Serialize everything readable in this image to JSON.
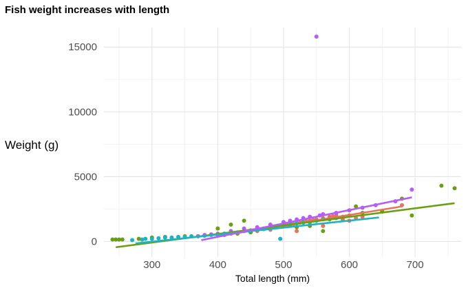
{
  "chart_data": {
    "type": "scatter",
    "title": "Fish weight increases with length",
    "xlabel": "Total length (mm)",
    "ylabel": "Weight (g)",
    "xlim": [
      227,
      770
    ],
    "ylim": [
      -1200,
      16500
    ],
    "x_ticks": [
      300,
      400,
      500,
      600,
      700
    ],
    "y_ticks": [
      0,
      5000,
      10000,
      15000
    ],
    "grid": true,
    "legend": "none",
    "series": [
      {
        "color": "#e8735f",
        "points": [
          [
            400,
            500
          ],
          [
            420,
            600
          ],
          [
            440,
            800
          ],
          [
            460,
            900
          ],
          [
            470,
            1000
          ],
          [
            480,
            1050
          ],
          [
            490,
            1100
          ],
          [
            500,
            1200
          ],
          [
            505,
            1250
          ],
          [
            510,
            1300
          ],
          [
            515,
            1350
          ],
          [
            520,
            1400
          ],
          [
            525,
            1450
          ],
          [
            530,
            1500
          ],
          [
            535,
            1550
          ],
          [
            540,
            1600
          ],
          [
            545,
            1650
          ],
          [
            550,
            1700
          ],
          [
            560,
            1800
          ],
          [
            570,
            1900
          ],
          [
            575,
            1950
          ],
          [
            580,
            2000
          ],
          [
            590,
            1700
          ],
          [
            600,
            1600
          ],
          [
            610,
            1800
          ],
          [
            620,
            1900
          ],
          [
            650,
            2300
          ],
          [
            680,
            2800
          ],
          [
            520,
            800
          ],
          [
            540,
            1300
          ],
          [
            560,
            1200
          ],
          [
            500,
            1400
          ],
          [
            480,
            900
          ],
          [
            460,
            800
          ]
        ],
        "fit": [
          [
            400,
            400
          ],
          [
            680,
            2700
          ]
        ]
      },
      {
        "color": "#6a9f12",
        "points": [
          [
            240,
            150
          ],
          [
            245,
            150
          ],
          [
            250,
            150
          ],
          [
            255,
            150
          ],
          [
            280,
            200
          ],
          [
            300,
            300
          ],
          [
            320,
            350
          ],
          [
            350,
            400
          ],
          [
            380,
            450
          ],
          [
            400,
            1000
          ],
          [
            410,
            500
          ],
          [
            420,
            1300
          ],
          [
            430,
            600
          ],
          [
            440,
            1600
          ],
          [
            450,
            700
          ],
          [
            460,
            900
          ],
          [
            480,
            1100
          ],
          [
            490,
            1200
          ],
          [
            500,
            1300
          ],
          [
            510,
            1400
          ],
          [
            520,
            1100
          ],
          [
            530,
            1500
          ],
          [
            540,
            1200
          ],
          [
            550,
            1600
          ],
          [
            560,
            800
          ],
          [
            570,
            1700
          ],
          [
            580,
            1800
          ],
          [
            590,
            1900
          ],
          [
            600,
            2000
          ],
          [
            610,
            2700
          ],
          [
            620,
            2200
          ],
          [
            650,
            2300
          ],
          [
            680,
            3300
          ],
          [
            695,
            2000
          ],
          [
            740,
            4300
          ],
          [
            760,
            4100
          ]
        ],
        "fit": [
          [
            245,
            -450
          ],
          [
            760,
            2950
          ]
        ]
      },
      {
        "color": "#1fb2bf",
        "points": [
          [
            270,
            100
          ],
          [
            285,
            150
          ],
          [
            290,
            200
          ],
          [
            300,
            200
          ],
          [
            310,
            250
          ],
          [
            320,
            300
          ],
          [
            330,
            300
          ],
          [
            340,
            350
          ],
          [
            350,
            350
          ],
          [
            360,
            400
          ],
          [
            370,
            400
          ],
          [
            380,
            450
          ],
          [
            390,
            500
          ],
          [
            400,
            550
          ],
          [
            410,
            600
          ],
          [
            420,
            650
          ],
          [
            430,
            700
          ],
          [
            440,
            800
          ],
          [
            450,
            850
          ],
          [
            460,
            900
          ],
          [
            470,
            950
          ],
          [
            480,
            1000
          ],
          [
            490,
            1100
          ],
          [
            495,
            200
          ],
          [
            500,
            1200
          ],
          [
            510,
            1300
          ],
          [
            520,
            1400
          ],
          [
            530,
            1450
          ],
          [
            540,
            1500
          ],
          [
            550,
            1600
          ],
          [
            560,
            1700
          ],
          [
            570,
            1750
          ],
          [
            580,
            1800
          ]
        ],
        "fit": [
          [
            275,
            -150
          ],
          [
            645,
            1850
          ]
        ]
      },
      {
        "color": "#b55ef5",
        "points": [
          [
            370,
            400
          ],
          [
            380,
            500
          ],
          [
            390,
            550
          ],
          [
            400,
            600
          ],
          [
            420,
            800
          ],
          [
            440,
            1000
          ],
          [
            460,
            1100
          ],
          [
            480,
            1300
          ],
          [
            500,
            1500
          ],
          [
            510,
            1600
          ],
          [
            520,
            1700
          ],
          [
            530,
            1800
          ],
          [
            540,
            1900
          ],
          [
            550,
            15800
          ],
          [
            555,
            2000
          ],
          [
            560,
            2100
          ],
          [
            580,
            2200
          ],
          [
            600,
            2400
          ],
          [
            620,
            2600
          ],
          [
            640,
            2800
          ],
          [
            670,
            3100
          ],
          [
            695,
            4000
          ]
        ],
        "fit": [
          [
            375,
            100
          ],
          [
            695,
            3400
          ]
        ]
      }
    ]
  }
}
